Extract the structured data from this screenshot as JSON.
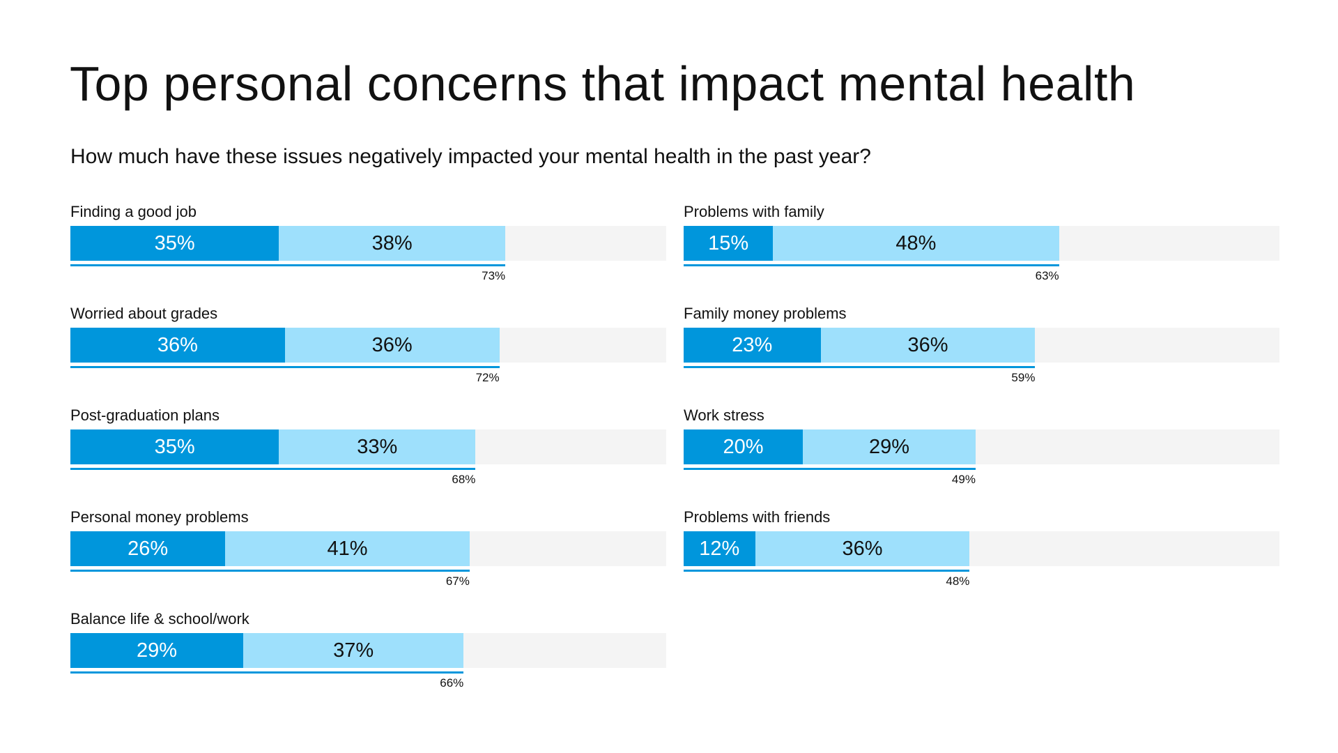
{
  "title": "Top personal concerns that impact mental health",
  "subtitle": "How much have these issues negatively impacted your mental health in the past year?",
  "colors": {
    "dark": "#0096dc",
    "light": "#9ee0fc",
    "track": "#f4f4f4"
  },
  "chart_data": {
    "type": "bar",
    "orientation": "horizontal",
    "stacked": true,
    "title": "Top personal concerns that impact mental health",
    "subtitle": "How much have these issues negatively impacted your mental health in the past year?",
    "xlim": [
      0,
      100
    ],
    "unit": "%",
    "series": [
      {
        "name": "dark",
        "color": "#0096dc"
      },
      {
        "name": "light",
        "color": "#9ee0fc"
      }
    ],
    "columns": [
      {
        "items": [
          {
            "label": "Finding a good job",
            "dark": 35,
            "light": 38,
            "total": 73
          },
          {
            "label": "Worried about grades",
            "dark": 36,
            "light": 36,
            "total": 72
          },
          {
            "label": "Post-graduation plans",
            "dark": 35,
            "light": 33,
            "total": 68
          },
          {
            "label": "Personal money problems",
            "dark": 26,
            "light": 41,
            "total": 67
          },
          {
            "label": "Balance life & school/work",
            "dark": 29,
            "light": 37,
            "total": 66
          }
        ]
      },
      {
        "items": [
          {
            "label": "Problems with family",
            "dark": 15,
            "light": 48,
            "total": 63
          },
          {
            "label": "Family money problems",
            "dark": 23,
            "light": 36,
            "total": 59
          },
          {
            "label": "Work stress",
            "dark": 20,
            "light": 29,
            "total": 49
          },
          {
            "label": "Problems with friends",
            "dark": 12,
            "light": 36,
            "total": 48
          }
        ]
      }
    ]
  }
}
